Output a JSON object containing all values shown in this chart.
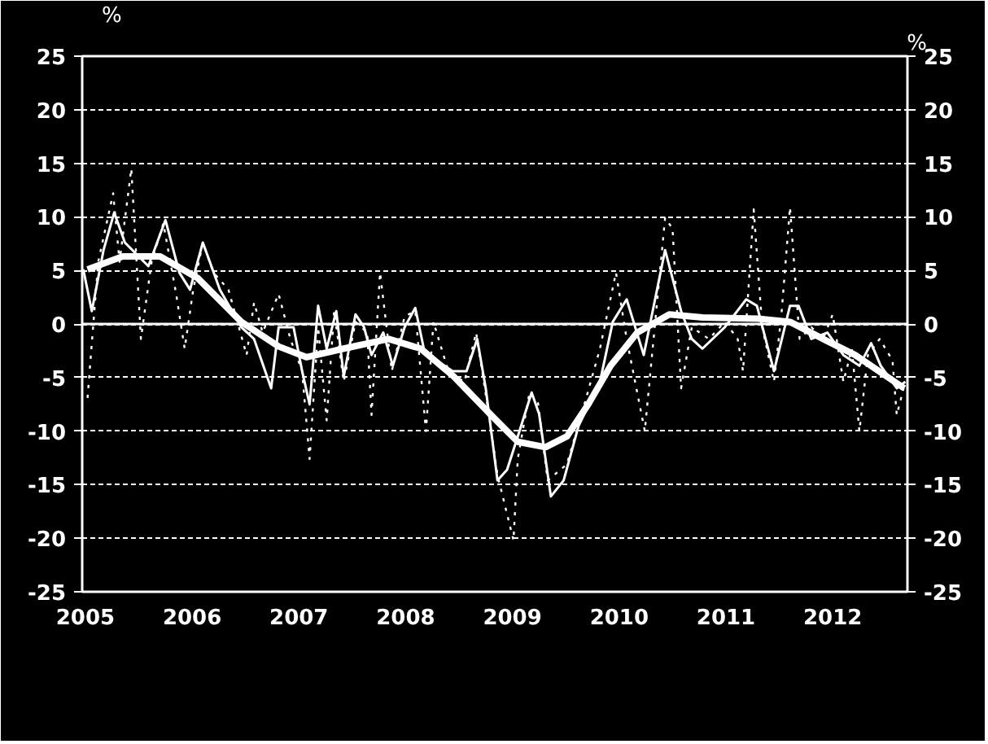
{
  "chart_data": {
    "type": "line",
    "ylabel": "%",
    "y2label": "%",
    "xlim": [
      2004.97,
      2012.7
    ],
    "xticks": [
      2005,
      2006,
      2007,
      2008,
      2009,
      2010,
      2011,
      2012
    ],
    "ylim": [
      -25,
      25
    ],
    "yticks": [
      -25,
      -20,
      -15,
      -10,
      -5,
      0,
      5,
      10,
      15,
      20,
      25
    ],
    "y2lim": [
      -25,
      25
    ],
    "y2ticks": [
      -25,
      -20,
      -15,
      -10,
      -5,
      0,
      5,
      10,
      15,
      20,
      25
    ],
    "grid": "y",
    "marker": "none",
    "ref_lines": [
      {
        "axis": "y",
        "value": 0,
        "color": "#ffffff",
        "line_style": "solid"
      }
    ],
    "series": [
      {
        "color": "#ffffff",
        "line_style": "dotted",
        "x": [
          2005.02,
          2005.12,
          2005.26,
          2005.32,
          2005.43,
          2005.52,
          2005.62,
          2005.73,
          2005.85,
          2005.93,
          2006.01,
          2006.1,
          2006.2,
          2006.34,
          2006.51,
          2006.58,
          2006.66,
          2006.81,
          2006.92,
          2007.03,
          2007.1,
          2007.18,
          2007.26,
          2007.33,
          2007.42,
          2007.53,
          2007.64,
          2007.68,
          2007.76,
          2007.87,
          2007.99,
          2008.09,
          2008.19,
          2008.26,
          2008.4,
          2008.55,
          2008.66,
          2008.78,
          2008.86,
          2009.01,
          2009.05,
          2009.16,
          2009.24,
          2009.33,
          2009.51,
          2009.66,
          2009.82,
          2009.97,
          2010.07,
          2010.24,
          2010.43,
          2010.5,
          2010.58,
          2010.68,
          2010.84,
          2010.99,
          2011.11,
          2011.16,
          2011.26,
          2011.34,
          2011.45,
          2011.52,
          2011.6,
          2011.69,
          2011.8,
          2011.91,
          2012.0,
          2012.1,
          2012.18,
          2012.25,
          2012.33,
          2012.44,
          2012.56,
          2012.6,
          2012.68
        ],
        "values": [
          -6.9,
          5.8,
          12.2,
          5.8,
          14.5,
          -1.4,
          5.8,
          9.4,
          2.8,
          -2.3,
          3.2,
          7.6,
          4.8,
          3.2,
          -2.9,
          2.0,
          -0.8,
          2.8,
          -1.4,
          -4.4,
          -12.6,
          -0.3,
          -9,
          1.2,
          -5.4,
          0.2,
          -0.8,
          -8.5,
          4.8,
          -4.4,
          0.7,
          1.2,
          -10,
          0.2,
          -4.4,
          -5.4,
          -0.8,
          -8.5,
          -14.1,
          -20.2,
          -12.6,
          -6.4,
          -7.4,
          -14.6,
          -13.1,
          -8,
          -2.3,
          4.8,
          -1.4,
          -10,
          9.9,
          8.9,
          -6,
          -0.3,
          -1.4,
          0.2,
          -1.4,
          -4.4,
          10.7,
          -0.3,
          -5.4,
          0.9,
          10.9,
          -1.4,
          -0.3,
          -1.4,
          0.9,
          -5.4,
          -2.3,
          -10,
          -2.9,
          -1.4,
          -3.4,
          -8.5,
          -5.4
        ]
      },
      {
        "color": "#ffffff",
        "line_style": "solid",
        "x": [
          2004.98,
          2005.06,
          2005.17,
          2005.27,
          2005.37,
          2005.5,
          2005.59,
          2005.75,
          2005.88,
          2005.98,
          2006.1,
          2006.26,
          2006.46,
          2006.58,
          2006.74,
          2006.81,
          2006.95,
          2007.03,
          2007.1,
          2007.18,
          2007.26,
          2007.35,
          2007.42,
          2007.53,
          2007.61,
          2007.68,
          2007.79,
          2007.88,
          2007.99,
          2008.09,
          2008.17,
          2008.29,
          2008.44,
          2008.57,
          2008.67,
          2008.75,
          2008.86,
          2008.95,
          2009.05,
          2009.18,
          2009.25,
          2009.36,
          2009.48,
          2009.62,
          2009.82,
          2009.94,
          2010.07,
          2010.23,
          2010.43,
          2010.58,
          2010.68,
          2010.78,
          2010.99,
          2011.19,
          2011.29,
          2011.45,
          2011.6,
          2011.68,
          2011.8,
          2011.95,
          2012.1,
          2012.25,
          2012.36,
          2012.45,
          2012.6,
          2012.68
        ],
        "values": [
          5.1,
          1.2,
          6.9,
          10.4,
          7.6,
          6.3,
          5.4,
          9.7,
          4.8,
          3.2,
          7.6,
          3.2,
          -0.3,
          -1.4,
          -6,
          -0.3,
          -0.3,
          -4.4,
          -7.5,
          1.7,
          -2.3,
          1.2,
          -4.9,
          0.9,
          -0.3,
          -2.9,
          -0.8,
          -3.9,
          -0.3,
          1.5,
          -2.3,
          -3.4,
          -4.4,
          -4.4,
          -1.4,
          -6,
          -14.6,
          -13.6,
          -10.5,
          -6.4,
          -8.4,
          -16.1,
          -14.6,
          -9.5,
          -5.4,
          0.2,
          2.3,
          -2.9,
          6.9,
          1.2,
          -1.4,
          -2.3,
          -0.3,
          2.3,
          1.7,
          -4.4,
          1.7,
          1.7,
          -1.4,
          -0.8,
          -2.9,
          -3.9,
          -1.8,
          -3.9,
          -6,
          -5.4
        ]
      },
      {
        "color": "#ffffff",
        "line_style": "solid",
        "x": [
          2005.02,
          2005.35,
          2005.7,
          2006.05,
          2006.46,
          2006.81,
          2007.07,
          2007.42,
          2007.84,
          2008.14,
          2008.45,
          2008.8,
          2009.05,
          2009.31,
          2009.51,
          2009.71,
          2009.92,
          2010.17,
          2010.47,
          2010.78,
          2011.3,
          2011.6,
          2011.91,
          2012.21,
          2012.67
        ],
        "values": [
          5.1,
          6.3,
          6.3,
          4.3,
          0.2,
          -2.1,
          -3.1,
          -2.3,
          -1.4,
          -2.3,
          -4.9,
          -8.5,
          -11,
          -11.5,
          -10.5,
          -7.5,
          -3.9,
          -0.8,
          0.9,
          0.6,
          0.5,
          0.2,
          -1.4,
          -2.9,
          -6
        ]
      }
    ]
  }
}
